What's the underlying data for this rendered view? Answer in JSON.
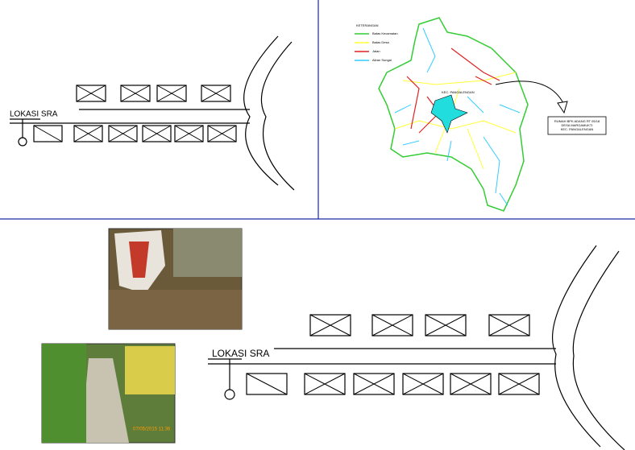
{
  "top_sketch": {
    "label": "LOKASI SRA"
  },
  "map": {
    "legend_title": "KETERANGAN",
    "legend": [
      {
        "label": "Batas Kecamatan",
        "color": "#33cc33"
      },
      {
        "label": "Batas Desa",
        "color": "#ffff33"
      },
      {
        "label": "Jalan",
        "color": "#dd2222"
      },
      {
        "label": "Aliran Sungai",
        "color": "#33ccff"
      }
    ],
    "district_label": "KEC. PANGALENGAN",
    "callout": [
      "RUMAH BPK ADANG RT 05/18",
      "DESA MARGAMUKTI",
      "KEC. PANGALENGAN"
    ]
  },
  "bottom_sketch": {
    "label": "LOKASI SRA"
  },
  "photos": {
    "timestamp": "07/05/2015 11:36"
  }
}
